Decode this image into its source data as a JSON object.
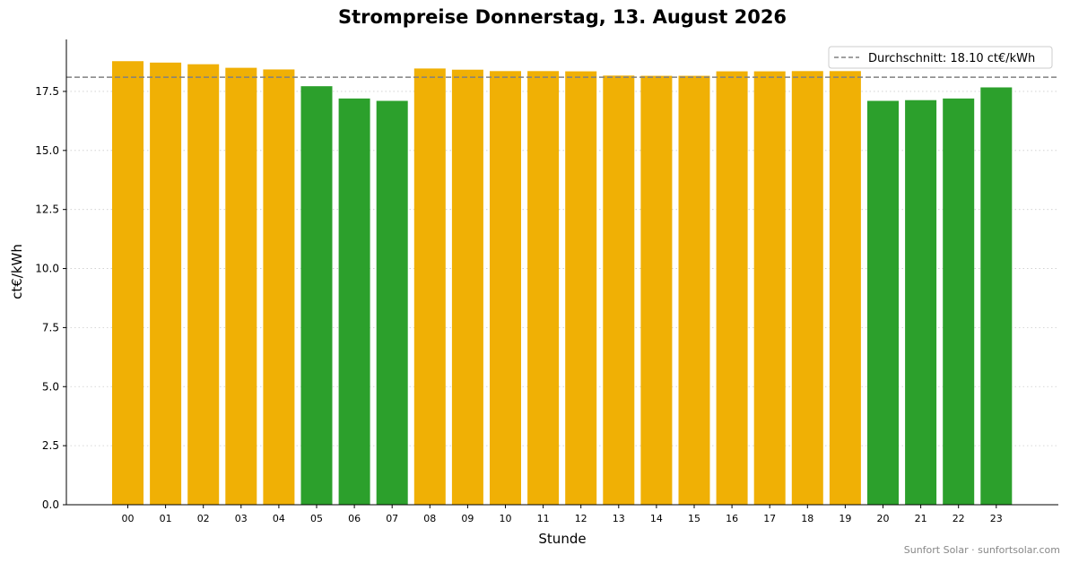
{
  "chart_data": {
    "type": "bar",
    "title": "Strompreise Donnerstag, 13. August 2026",
    "xlabel": "Stunde",
    "ylabel": "ct€/kWh",
    "ylim": [
      0,
      19.7
    ],
    "yticks": [
      "0.0",
      "2.5",
      "5.0",
      "7.5",
      "10.0",
      "12.5",
      "15.0",
      "17.5"
    ],
    "categories": [
      "00",
      "01",
      "02",
      "03",
      "04",
      "05",
      "06",
      "07",
      "08",
      "09",
      "10",
      "11",
      "12",
      "13",
      "14",
      "15",
      "16",
      "17",
      "18",
      "19",
      "20",
      "21",
      "22",
      "23"
    ],
    "values": [
      18.78,
      18.72,
      18.65,
      18.5,
      18.43,
      17.72,
      17.2,
      17.1,
      18.47,
      18.42,
      18.36,
      18.36,
      18.35,
      18.17,
      18.16,
      18.16,
      18.35,
      18.35,
      18.36,
      18.36,
      17.1,
      17.13,
      17.2,
      17.67
    ],
    "bar_colors": [
      "#f0b005",
      "#f0b005",
      "#f0b005",
      "#f0b005",
      "#f0b005",
      "#2ca02c",
      "#2ca02c",
      "#2ca02c",
      "#f0b005",
      "#f0b005",
      "#f0b005",
      "#f0b005",
      "#f0b005",
      "#f0b005",
      "#f0b005",
      "#f0b005",
      "#f0b005",
      "#f0b005",
      "#f0b005",
      "#f0b005",
      "#2ca02c",
      "#2ca02c",
      "#2ca02c",
      "#2ca02c"
    ],
    "average": 18.1,
    "average_color": "#808080",
    "legend": {
      "label": "Durchschnitt: 18.10 ct€/kWh",
      "placement": "top-right"
    },
    "grid": "horizontal dotted",
    "footer": "Sunfort Solar · sunfortsolar.com"
  }
}
